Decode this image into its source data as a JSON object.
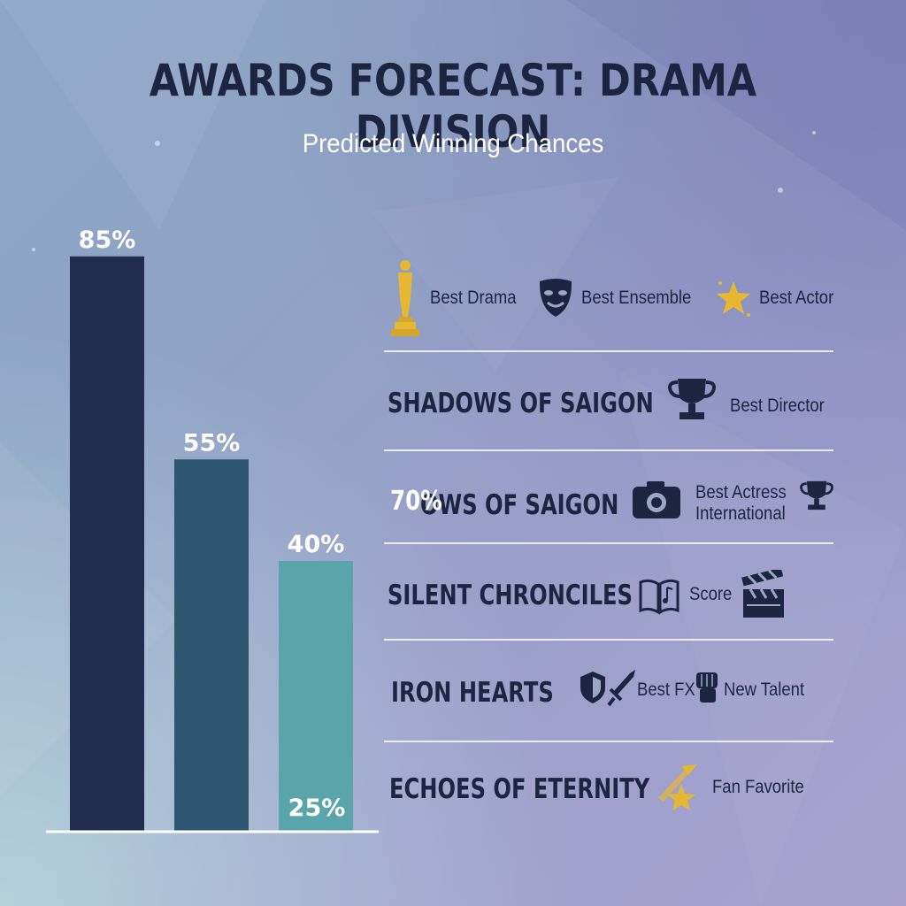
{
  "header": {
    "title": "AWARDS FORECAST: DRAMA DIVISION",
    "subtitle": "Predicted Winning Chances"
  },
  "chart_data": {
    "type": "bar",
    "values": [
      85,
      55,
      40
    ],
    "value_labels": [
      "85%",
      "55%",
      "40%"
    ],
    "ylim": [
      0,
      100
    ],
    "grid": false,
    "colors": [
      "#212d4d",
      "#2d5670",
      "#5aa5a9"
    ]
  },
  "legend": {
    "items": [
      {
        "label": "Best Drama",
        "icon": "oscar-statue-icon"
      },
      {
        "label": "Best Ensemble",
        "icon": "theater-masks-icon"
      },
      {
        "label": "Best Actor",
        "icon": "star-icon"
      }
    ]
  },
  "rows": [
    {
      "title": "SHADOWS OF SAIGON",
      "awards": [
        {
          "label": "Best Director",
          "icon": "trophy-icon"
        }
      ]
    },
    {
      "title": "OWS OF SAIGON",
      "overlay_percent": "70%",
      "awards": [
        {
          "label": "Best Actress\nInternational",
          "icon": "camera-icon"
        },
        {
          "label": "",
          "icon": "trophy-icon"
        }
      ]
    },
    {
      "title": "SILENT CHRONCILES",
      "awards": [
        {
          "label": "",
          "icon": "book-music-icon"
        },
        {
          "label": "Score",
          "icon": ""
        },
        {
          "label": "",
          "icon": "clapperboard-icon"
        }
      ]
    },
    {
      "title": "IRON HEARTS",
      "awards": [
        {
          "label": "",
          "icon": "shield-icon"
        },
        {
          "label": "Best FX",
          "icon": "sword-icon"
        },
        {
          "label": "New Talent",
          "icon": "fist-icon"
        }
      ]
    },
    {
      "title": "ECHOES OF ETERNITY",
      "awards": [
        {
          "label": "Fan Favorite",
          "icon": "shooting-star-icon"
        }
      ]
    }
  ],
  "extra_labels": {
    "floating_percent": "25%"
  },
  "theme": {
    "text_dark": "#1c2540",
    "gold": "#e6b832"
  }
}
